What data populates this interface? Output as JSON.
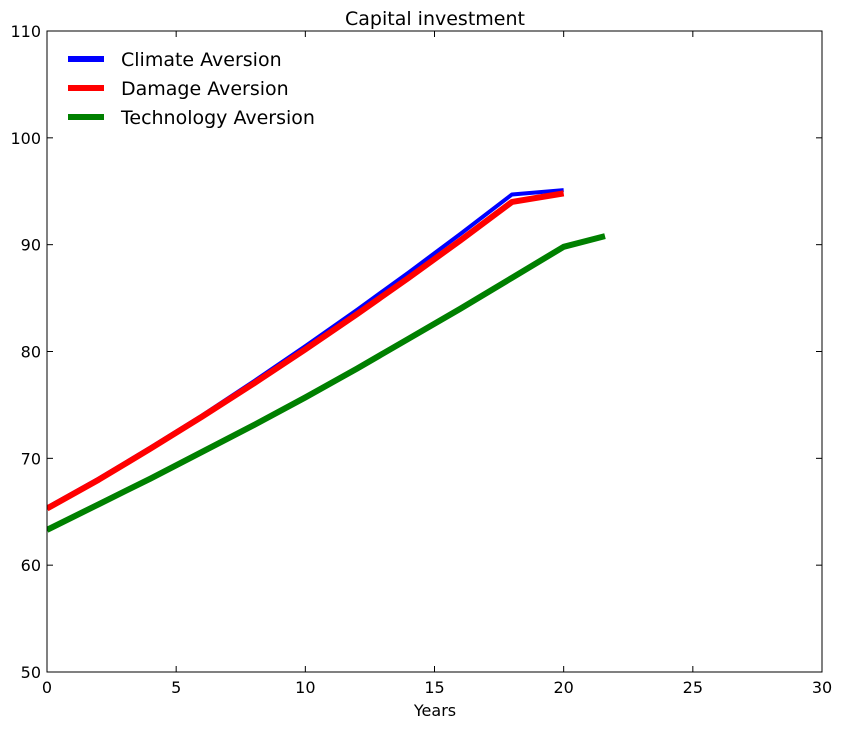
{
  "chart_data": {
    "type": "line",
    "title": "Capital investment",
    "xlabel": "Years",
    "ylabel": "",
    "xlim": [
      0,
      30
    ],
    "ylim": [
      50,
      110
    ],
    "xticks": [
      0,
      5,
      10,
      15,
      20,
      25,
      30
    ],
    "yticks": [
      50,
      60,
      70,
      80,
      90,
      100,
      110
    ],
    "grid": false,
    "legend_position": "top-left",
    "series": [
      {
        "name": "Climate Aversion",
        "color": "#0000ff",
        "x": [
          0,
          2,
          4,
          6,
          8,
          10,
          12,
          14,
          16,
          18,
          20
        ],
        "y": [
          65.4,
          68.1,
          71.0,
          74.0,
          77.2,
          80.5,
          83.9,
          87.4,
          91.0,
          94.7,
          95.1
        ]
      },
      {
        "name": "Damage Aversion",
        "color": "#ff0000",
        "x": [
          0,
          2,
          4,
          6,
          8,
          10,
          12,
          14,
          16,
          18,
          20
        ],
        "y": [
          65.3,
          68.0,
          70.9,
          73.9,
          77.0,
          80.2,
          83.5,
          86.9,
          90.4,
          94.0,
          94.8
        ]
      },
      {
        "name": "Technology Aversion",
        "color": "#008000",
        "x": [
          0,
          2,
          4,
          6,
          8,
          10,
          12,
          14,
          16,
          18,
          20,
          21.6
        ],
        "y": [
          63.3,
          65.7,
          68.1,
          70.6,
          73.1,
          75.7,
          78.4,
          81.2,
          84.0,
          86.9,
          89.8,
          90.8
        ]
      }
    ]
  }
}
